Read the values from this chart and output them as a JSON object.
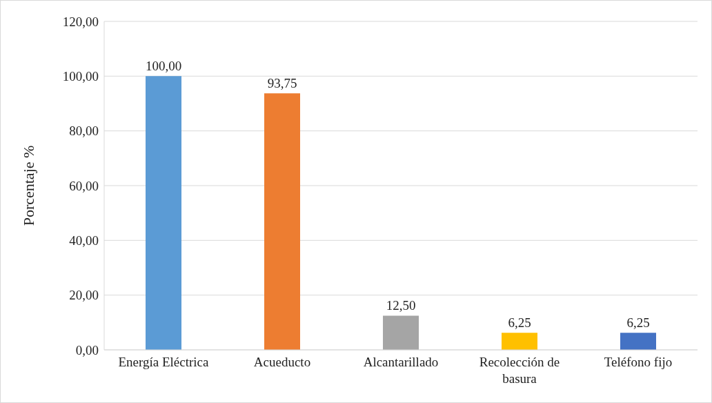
{
  "chart_data": {
    "type": "bar",
    "ylabel": "Porcentaje %",
    "categories": [
      "Energía Eléctrica",
      "Acueducto",
      "Alcantarillado",
      "Recolección de basura",
      "Teléfono fijo"
    ],
    "values": [
      100,
      93.75,
      12.5,
      6.25,
      6.25
    ],
    "value_labels": [
      "100,00",
      "93,75",
      "12,50",
      "6,25",
      "6,25"
    ],
    "colors": [
      "#5b9bd5",
      "#ed7d31",
      "#a5a5a5",
      "#ffc000",
      "#4472c4"
    ],
    "ylim": [
      0,
      120
    ],
    "yticks": [
      {
        "value": 0,
        "label": "0,00"
      },
      {
        "value": 20,
        "label": "20,00"
      },
      {
        "value": 40,
        "label": "40,00"
      },
      {
        "value": 60,
        "label": "60,00"
      },
      {
        "value": 80,
        "label": "80,00"
      },
      {
        "value": 100,
        "label": "100,00"
      },
      {
        "value": 120,
        "label": "120,00"
      }
    ],
    "grid": "y"
  }
}
